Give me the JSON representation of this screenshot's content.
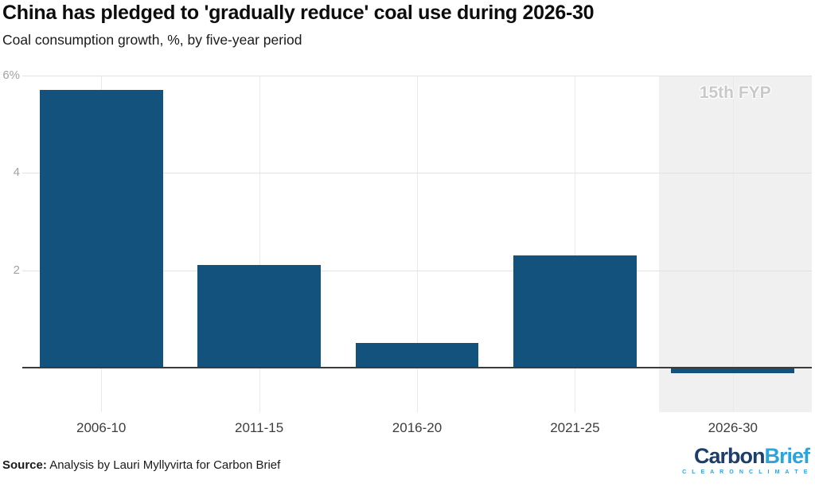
{
  "header": {
    "title": "China has pledged to 'gradually reduce' coal use during 2026-30",
    "subtitle": "Coal consumption growth, %, by five-year period"
  },
  "chart_data": {
    "type": "bar",
    "title": "China has pledged to 'gradually reduce' coal use during 2026-30",
    "subtitle": "Coal consumption growth, %, by five-year period",
    "categories": [
      "2006-10",
      "2011-15",
      "2016-20",
      "2021-25",
      "2026-30"
    ],
    "values": [
      5.7,
      2.1,
      0.5,
      2.3,
      -0.1
    ],
    "xlabel": "",
    "ylabel": "Coal consumption growth, %",
    "ylim": [
      -0.92,
      6
    ],
    "y_ticks": [
      {
        "value": 6,
        "label": "6%"
      },
      {
        "value": 4,
        "label": "4"
      },
      {
        "value": 2,
        "label": "2"
      }
    ],
    "grid": true,
    "legend": null,
    "bar_color": "#14527E",
    "highlight_band": {
      "label": "15th FYP",
      "category": "2026-30",
      "x_start_frac": 0.806,
      "x_end_frac": 1.0,
      "color": "#F0F0F0",
      "label_color": "#C9C9C9"
    }
  },
  "footer": {
    "source_label": "Source:",
    "source_text": " Analysis by Lauri Myllyvirta for Carbon Brief",
    "logo": {
      "part1": "Carbon",
      "part2": "Brief",
      "tagline": "C L E A R   O N   C L I M A T E",
      "part1_color": "#1D3D6B",
      "part2_color": "#2BA3DC"
    }
  }
}
